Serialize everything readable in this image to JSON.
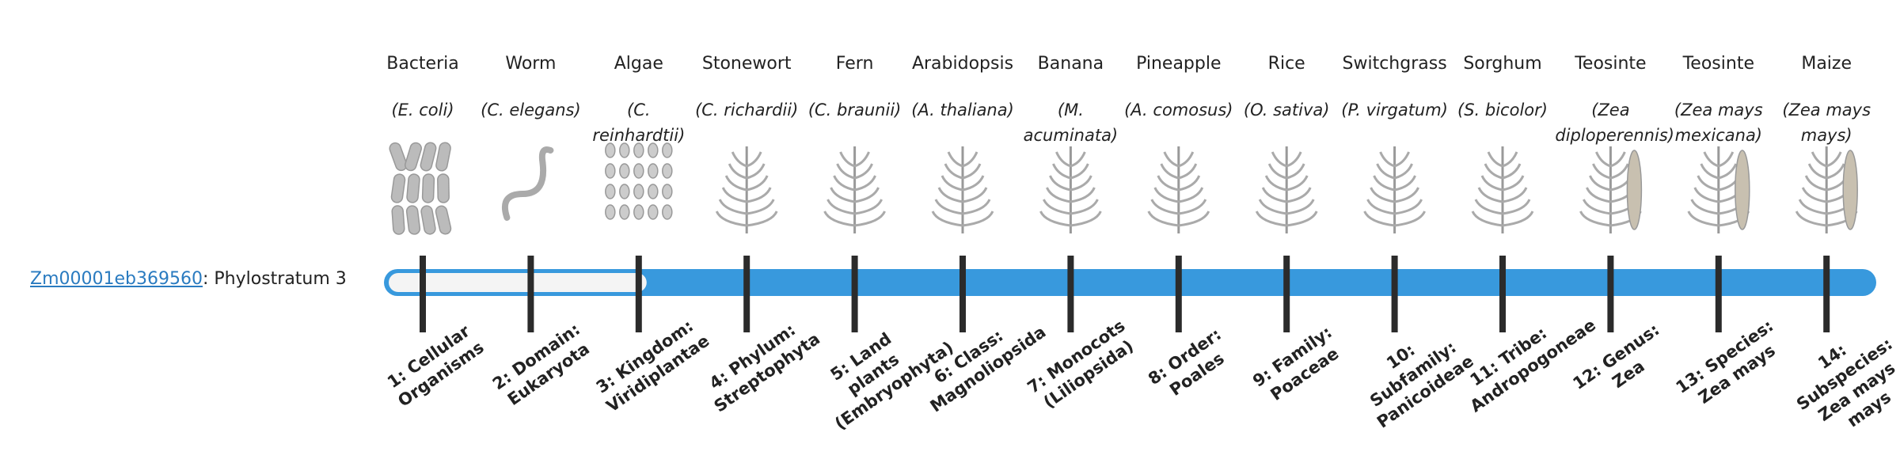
{
  "gene": {
    "id": "Zm00001eb369560",
    "label": ": Phylostratum 3"
  },
  "taxa": [
    {
      "name": "Bacteria",
      "species": "(E. coli)",
      "stratum": "1: Cellular Organisms"
    },
    {
      "name": "Worm",
      "species": "(C. elegans)",
      "stratum": "2: Domain: Eukaryota"
    },
    {
      "name": "Algae",
      "species": "(C. reinhardtii)",
      "stratum": "3: Kingdom: Viridiplantae"
    },
    {
      "name": "Stonewort",
      "species": "(C. richardii)",
      "stratum": "4: Phylum: Streptophyta"
    },
    {
      "name": "Fern",
      "species": "(C. braunii)",
      "stratum": "5: Land plants (Embryophyta)"
    },
    {
      "name": "Arabidopsis",
      "species": "(A. thaliana)",
      "stratum": "6: Class: Magnoliopsida"
    },
    {
      "name": "Banana",
      "species": "(M. acuminata)",
      "stratum": "7: Monocots (Liliopsida)"
    },
    {
      "name": "Pineapple",
      "species": "(A. comosus)",
      "stratum": "8: Order: Poales"
    },
    {
      "name": "Rice",
      "species": "(O. sativa)",
      "stratum": "9: Family: Poaceae"
    },
    {
      "name": "Switchgrass",
      "species": "(P. virgatum)",
      "stratum": "10: Subfamily: Panicoideae"
    },
    {
      "name": "Sorghum",
      "species": "(S. bicolor)",
      "stratum": "11: Tribe: Andropogoneae"
    },
    {
      "name": "Teosinte",
      "species": "(Zea diploperennis)",
      "stratum": "12: Genus: Zea"
    },
    {
      "name": "Teosinte",
      "species": "(Zea mays mexicana)",
      "stratum": "13: Species: Zea mays"
    },
    {
      "name": "Maize",
      "species": "(Zea mays mays)",
      "stratum": "14: Subspecies: Zea mays mays"
    }
  ]
}
